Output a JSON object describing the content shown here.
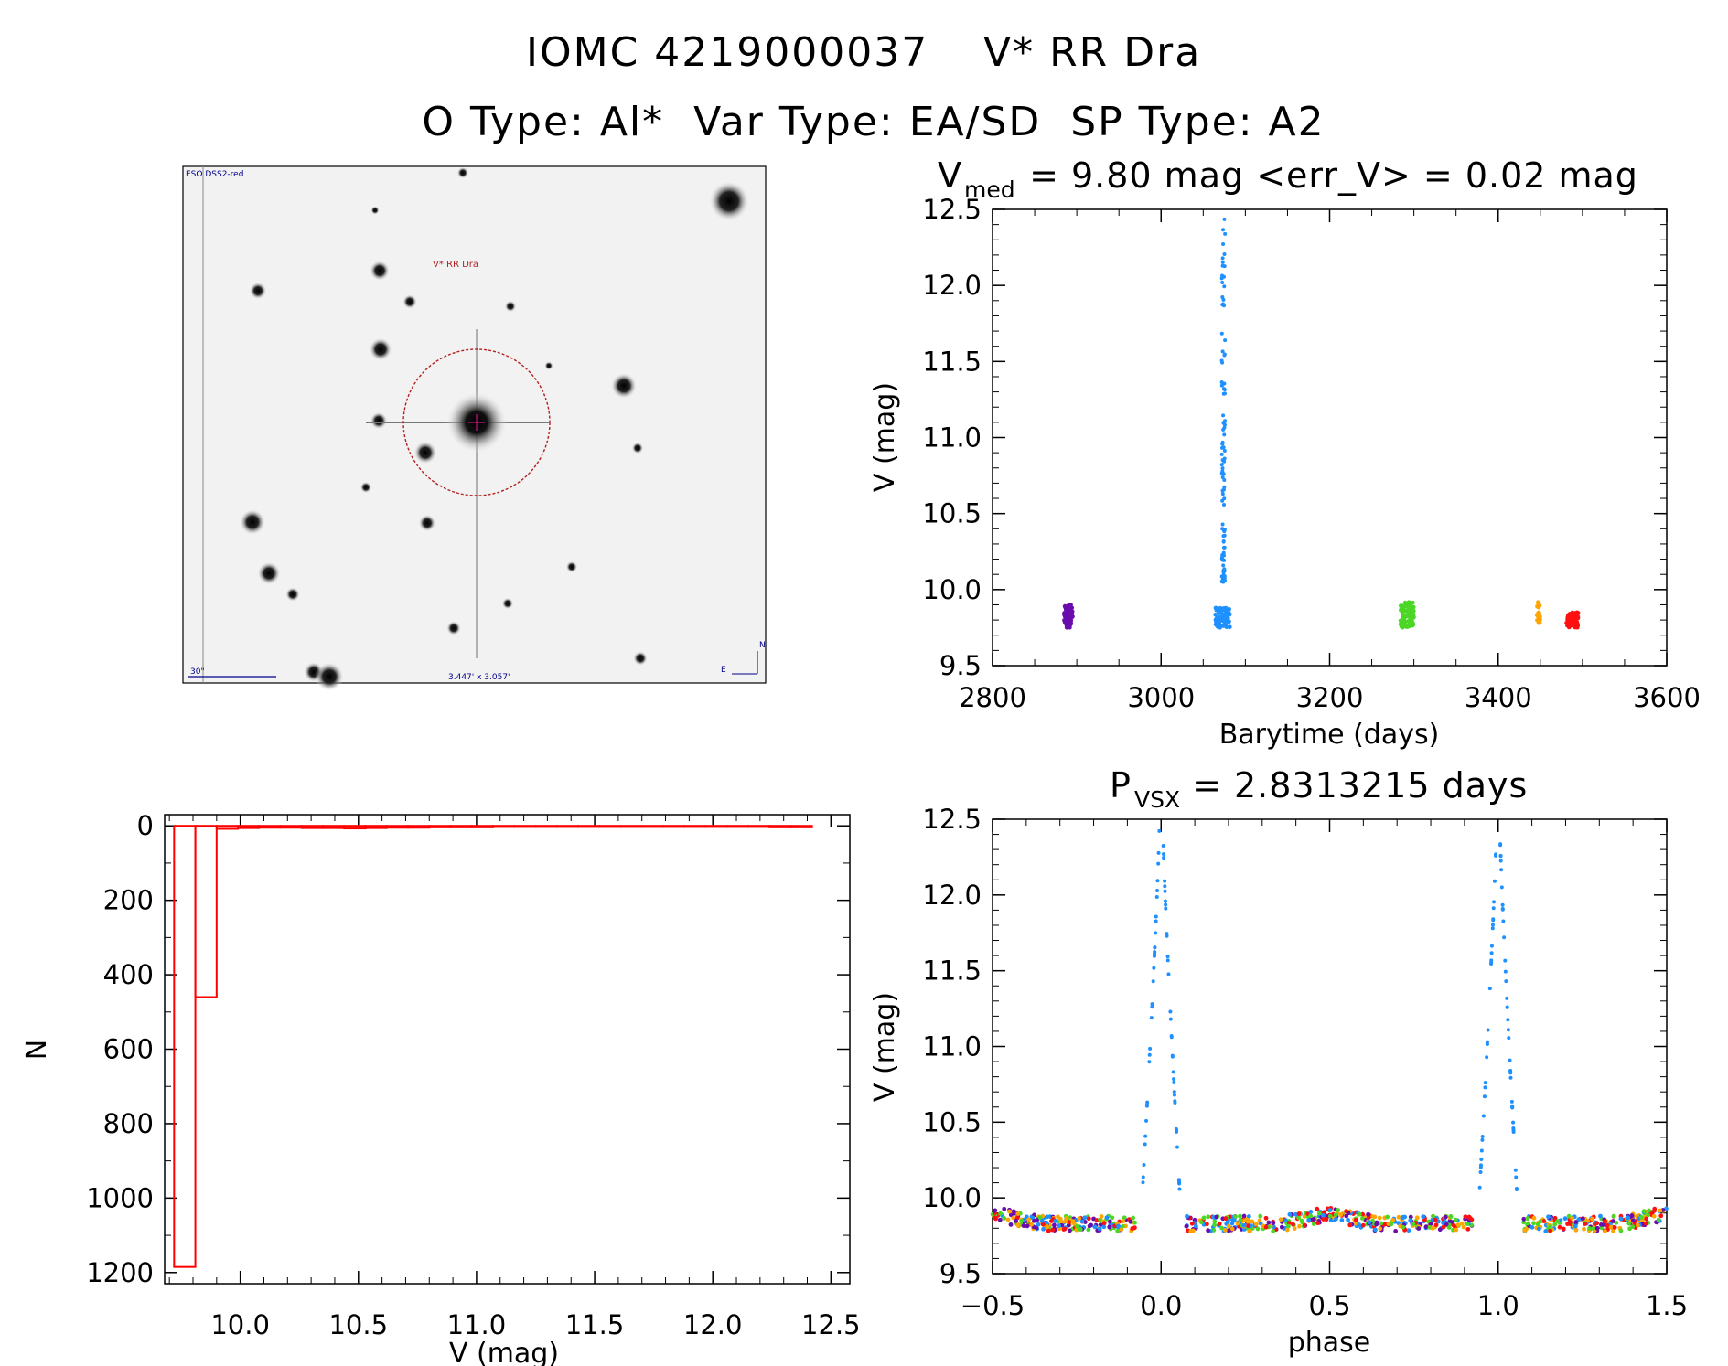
{
  "header": {
    "line1_id": "IOMC 4219000037",
    "line1_name": "V* RR Dra",
    "line2": "O Type: Al*  Var Type: EA/SD  SP Type: A2"
  },
  "sky_image": {
    "survey_label": "ESO DSS2-red",
    "target_label": "V* RR Dra",
    "scale_label": "30\"",
    "fov_label": "3.447' x 3.057'",
    "north_label": "N",
    "east_label": "E"
  },
  "colors": {
    "blue": "#1e90ff",
    "purple": "#6a0dad",
    "green": "#4cd726",
    "orange": "#ffa500",
    "red": "#ff1010",
    "hist": "#ff0000",
    "circle": "#b22222"
  },
  "chart_data": [
    {
      "id": "lightcurve",
      "type": "scatter",
      "title_base": "V",
      "title_sub": "med",
      "title_rest": " = 9.80 mag <err_V> = 0.02 mag",
      "xlabel": "Barytime (days)",
      "ylabel": "V (mag)",
      "xlim": [
        2800,
        3600
      ],
      "ylim": [
        12.5,
        9.5
      ],
      "xticks": [
        "2800",
        "3000",
        "3200",
        "3400",
        "3600"
      ],
      "yticks": [
        "9.5",
        "10.0",
        "10.5",
        "11.0",
        "11.5",
        "12.0",
        "12.5"
      ],
      "clusters": [
        {
          "color": "purple",
          "x": 2890,
          "width": 10,
          "v_min": 9.75,
          "v_max": 9.9
        },
        {
          "color": "blue",
          "x": 3073,
          "width": 18,
          "v_min": 9.75,
          "v_max": 9.88
        },
        {
          "color": "green",
          "x": 3292,
          "width": 16,
          "v_min": 9.75,
          "v_max": 9.92
        },
        {
          "color": "orange",
          "x": 3448,
          "width": 4,
          "v_min": 9.78,
          "v_max": 9.92
        },
        {
          "color": "red",
          "x": 3488,
          "width": 14,
          "v_min": 9.75,
          "v_max": 9.85
        }
      ],
      "eclipse": {
        "color": "blue",
        "x": 3074,
        "v_min": 10.05,
        "v_max": 12.45
      }
    },
    {
      "id": "histogram",
      "type": "bar",
      "xlabel": "V (mag)",
      "ylabel": "N",
      "xlim": [
        9.68,
        12.58
      ],
      "ylim": [
        -30,
        1230
      ],
      "xticks": [
        "10.0",
        "10.5",
        "11.0",
        "11.5",
        "12.0",
        "12.5"
      ],
      "yticks": [
        "0",
        "200",
        "400",
        "600",
        "800",
        "1000",
        "1200"
      ],
      "bin_width": 0.09,
      "bins": [
        {
          "v": 9.72,
          "n": 1185
        },
        {
          "v": 9.81,
          "n": 460
        },
        {
          "v": 9.9,
          "n": 8
        },
        {
          "v": 9.99,
          "n": 6
        },
        {
          "v": 10.08,
          "n": 5
        },
        {
          "v": 10.17,
          "n": 5
        },
        {
          "v": 10.26,
          "n": 6
        },
        {
          "v": 10.35,
          "n": 6
        },
        {
          "v": 10.44,
          "n": 7
        },
        {
          "v": 10.53,
          "n": 6
        },
        {
          "v": 10.62,
          "n": 5
        },
        {
          "v": 10.71,
          "n": 5
        },
        {
          "v": 10.8,
          "n": 4
        },
        {
          "v": 10.89,
          "n": 4
        },
        {
          "v": 10.98,
          "n": 4
        },
        {
          "v": 11.07,
          "n": 3
        },
        {
          "v": 11.16,
          "n": 3
        },
        {
          "v": 11.25,
          "n": 3
        },
        {
          "v": 11.34,
          "n": 3
        },
        {
          "v": 11.43,
          "n": 3
        },
        {
          "v": 11.52,
          "n": 3
        },
        {
          "v": 11.61,
          "n": 3
        },
        {
          "v": 11.7,
          "n": 3
        },
        {
          "v": 11.79,
          "n": 3
        },
        {
          "v": 11.88,
          "n": 3
        },
        {
          "v": 11.97,
          "n": 3
        },
        {
          "v": 12.06,
          "n": 3
        },
        {
          "v": 12.15,
          "n": 3
        },
        {
          "v": 12.24,
          "n": 4
        },
        {
          "v": 12.33,
          "n": 4
        }
      ]
    },
    {
      "id": "phased",
      "type": "scatter",
      "title_base": "P",
      "title_sub": "VSX",
      "title_rest": " = 2.8313215 days",
      "xlabel": "phase",
      "ylabel": "V (mag)",
      "xlim": [
        -0.5,
        1.5
      ],
      "ylim": [
        12.5,
        9.5
      ],
      "xticks": [
        "−0.5",
        "0.0",
        "0.5",
        "1.0",
        "1.5"
      ],
      "yticks": [
        "9.5",
        "10.0",
        "10.5",
        "11.0",
        "11.5",
        "12.0",
        "12.5"
      ],
      "period_days": 2.8313215,
      "eclipse_halfwidth": 0.055,
      "eclipse_depth_mag": 12.45,
      "baseline_mag": 9.83
    }
  ]
}
